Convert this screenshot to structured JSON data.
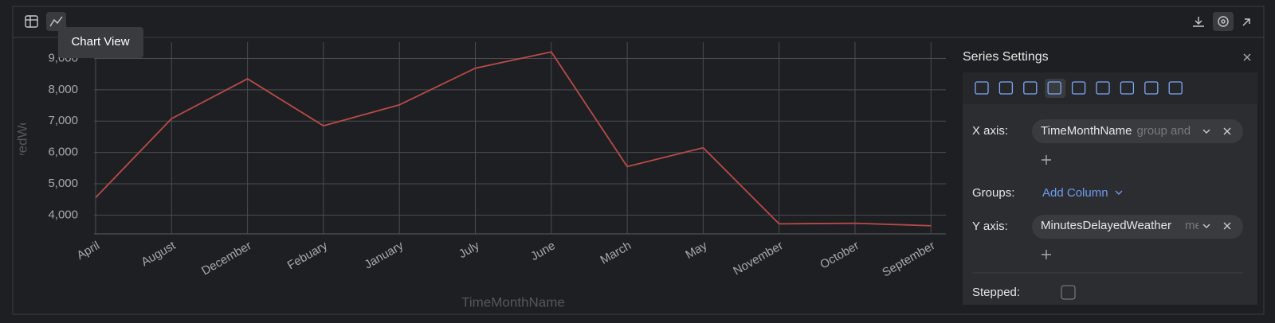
{
  "chart_data": {
    "type": "line",
    "x_label": "TimeMonthName",
    "y_label": "MinutesDelayedWeather (mean",
    "categories": [
      "April",
      "August",
      "December",
      "Febuary",
      "January",
      "July",
      "June",
      "March",
      "May",
      "November",
      "October",
      "September"
    ],
    "series": [
      {
        "color": "#b94a48",
        "values": [
          4560,
          7080,
          8350,
          6850,
          7520,
          8690,
          9210,
          5550,
          6150,
          3720,
          3740,
          3660
        ]
      }
    ],
    "ylim": [
      3400,
      9520
    ],
    "yticks": [
      {
        "value": 4000,
        "label": "4,000"
      },
      {
        "value": 5000,
        "label": "5,000"
      },
      {
        "value": 6000,
        "label": "6,000"
      },
      {
        "value": 7000,
        "label": "7,000"
      },
      {
        "value": 8000,
        "label": "8,000"
      },
      {
        "value": 9000,
        "label": "9,000"
      }
    ],
    "grid": true
  },
  "tooltip": "Chart View",
  "settings": {
    "title": "Series Settings",
    "x_axis_label": "X axis:",
    "x_column": "TimeMonthName",
    "x_hint": "group and",
    "groups_label": "Groups:",
    "add_column": "Add Column",
    "y_axis_label": "Y axis:",
    "y_column": "MinutesDelayedWeather",
    "y_hint": "mean",
    "stepped_label": "Stepped:"
  }
}
